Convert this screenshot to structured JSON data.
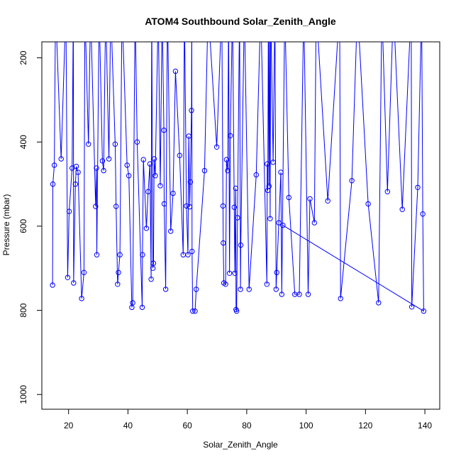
{
  "chart_data": {
    "type": "line",
    "title": "ATOM4 Southbound Solar_Zenith_Angle",
    "xlabel": "Solar_Zenith_Angle",
    "ylabel": "Pressure (mbar)",
    "xlim": [
      11,
      145
    ],
    "ylim": [
      1035,
      162
    ],
    "y_inverted": true,
    "xticks": [
      20,
      40,
      60,
      80,
      100,
      120,
      140
    ],
    "yticks": [
      200,
      400,
      600,
      800,
      1000
    ],
    "grid": false,
    "series": [
      {
        "color": "#0000ff",
        "marker": "open-circle",
        "points": [
          [
            14.6,
            740
          ],
          [
            14.7,
            500
          ],
          [
            15.2,
            455
          ],
          [
            15.6,
            80
          ],
          [
            17.5,
            440
          ],
          [
            19.1,
            80
          ],
          [
            19.7,
            722
          ],
          [
            20.2,
            565
          ],
          [
            21.2,
            462
          ],
          [
            21.6,
            80
          ],
          [
            21.7,
            735
          ],
          [
            22.3,
            500
          ],
          [
            22.6,
            458
          ],
          [
            23.2,
            472
          ],
          [
            24.4,
            772
          ],
          [
            25.2,
            710
          ],
          [
            25.5,
            80
          ],
          [
            26.7,
            405
          ],
          [
            27.4,
            80
          ],
          [
            29.1,
            553
          ],
          [
            29.4,
            462
          ],
          [
            29.5,
            668
          ],
          [
            30.3,
            80
          ],
          [
            31.4,
            445
          ],
          [
            31.8,
            468
          ],
          [
            32.5,
            80
          ],
          [
            33.6,
            440
          ],
          [
            34.2,
            80
          ],
          [
            35.7,
            405
          ],
          [
            36.0,
            553
          ],
          [
            36.5,
            738
          ],
          [
            36.8,
            710
          ],
          [
            37.3,
            668
          ],
          [
            38.0,
            80
          ],
          [
            39.7,
            455
          ],
          [
            40.3,
            480
          ],
          [
            41.3,
            793
          ],
          [
            41.6,
            782
          ],
          [
            42.4,
            80
          ],
          [
            43.1,
            400
          ],
          [
            44.8,
            793
          ],
          [
            44.9,
            668
          ],
          [
            45.2,
            442
          ],
          [
            46.2,
            605
          ],
          [
            46.8,
            518
          ],
          [
            47.4,
            452
          ],
          [
            47.8,
            726
          ],
          [
            48.0,
            80
          ],
          [
            48.4,
            700
          ],
          [
            48.6,
            688
          ],
          [
            48.8,
            440
          ],
          [
            49.2,
            480
          ],
          [
            50.2,
            80
          ],
          [
            50.9,
            504
          ],
          [
            51.5,
            80
          ],
          [
            52.1,
            372
          ],
          [
            52.2,
            547
          ],
          [
            52.7,
            750
          ],
          [
            53.3,
            80
          ],
          [
            54.4,
            612
          ],
          [
            55.2,
            522
          ],
          [
            56.0,
            232
          ],
          [
            57.4,
            432
          ],
          [
            58.6,
            668
          ],
          [
            59.0,
            80
          ],
          [
            59.7,
            552
          ],
          [
            60.2,
            668
          ],
          [
            60.5,
            386
          ],
          [
            60.8,
            554
          ],
          [
            61.0,
            495
          ],
          [
            61.4,
            325
          ],
          [
            61.5,
            80
          ],
          [
            61.6,
            660
          ],
          [
            61.8,
            802
          ],
          [
            62.6,
            802
          ],
          [
            63.0,
            750
          ],
          [
            65.8,
            468
          ],
          [
            67.0,
            80
          ],
          [
            69.9,
            412
          ],
          [
            71.6,
            80
          ],
          [
            72.0,
            552
          ],
          [
            72.1,
            640
          ],
          [
            72.3,
            735
          ],
          [
            72.9,
            738
          ],
          [
            73.2,
            442
          ],
          [
            73.6,
            468
          ],
          [
            73.9,
            80
          ],
          [
            74.2,
            712
          ],
          [
            74.5,
            385
          ],
          [
            75.2,
            80
          ],
          [
            75.8,
            555
          ],
          [
            76.0,
            712
          ],
          [
            76.3,
            510
          ],
          [
            76.4,
            798
          ],
          [
            76.6,
            802
          ],
          [
            76.9,
            580
          ],
          [
            77.6,
            80
          ],
          [
            77.9,
            750
          ],
          [
            78.0,
            645
          ],
          [
            79.2,
            80
          ],
          [
            80.8,
            750
          ],
          [
            83.2,
            478
          ],
          [
            84.7,
            80
          ],
          [
            86.8,
            738
          ],
          [
            86.9,
            452
          ],
          [
            87.1,
            515
          ],
          [
            87.3,
            80
          ],
          [
            87.5,
            505
          ],
          [
            87.7,
            80
          ],
          [
            87.9,
            582
          ],
          [
            88.1,
            80
          ],
          [
            88.9,
            448
          ],
          [
            89.5,
            80
          ],
          [
            89.9,
            750
          ],
          [
            90.1,
            710
          ],
          [
            90.8,
            592
          ],
          [
            91.5,
            472
          ],
          [
            91.8,
            762
          ],
          [
            92.8,
            80
          ],
          [
            94.2,
            532
          ],
          [
            96.2,
            762
          ],
          [
            97.7,
            762
          ],
          [
            99.2,
            80
          ],
          [
            100.7,
            762
          ],
          [
            101.3,
            535
          ],
          [
            102.8,
            592
          ],
          [
            103.4,
            80
          ],
          [
            107.3,
            540
          ],
          [
            111.3,
            80
          ],
          [
            111.6,
            772
          ],
          [
            115.4,
            492
          ],
          [
            117.3,
            80
          ],
          [
            120.9,
            547
          ],
          [
            124.4,
            782
          ],
          [
            125.5,
            80
          ],
          [
            127.4,
            518
          ],
          [
            129.4,
            80
          ],
          [
            132.4,
            560
          ],
          [
            135.4,
            80
          ],
          [
            135.6,
            792
          ],
          [
            137.6,
            508
          ],
          [
            138.9,
            80
          ],
          [
            139.3,
            571
          ],
          [
            139.6,
            802
          ],
          [
            92.2,
            598
          ]
        ]
      }
    ]
  }
}
